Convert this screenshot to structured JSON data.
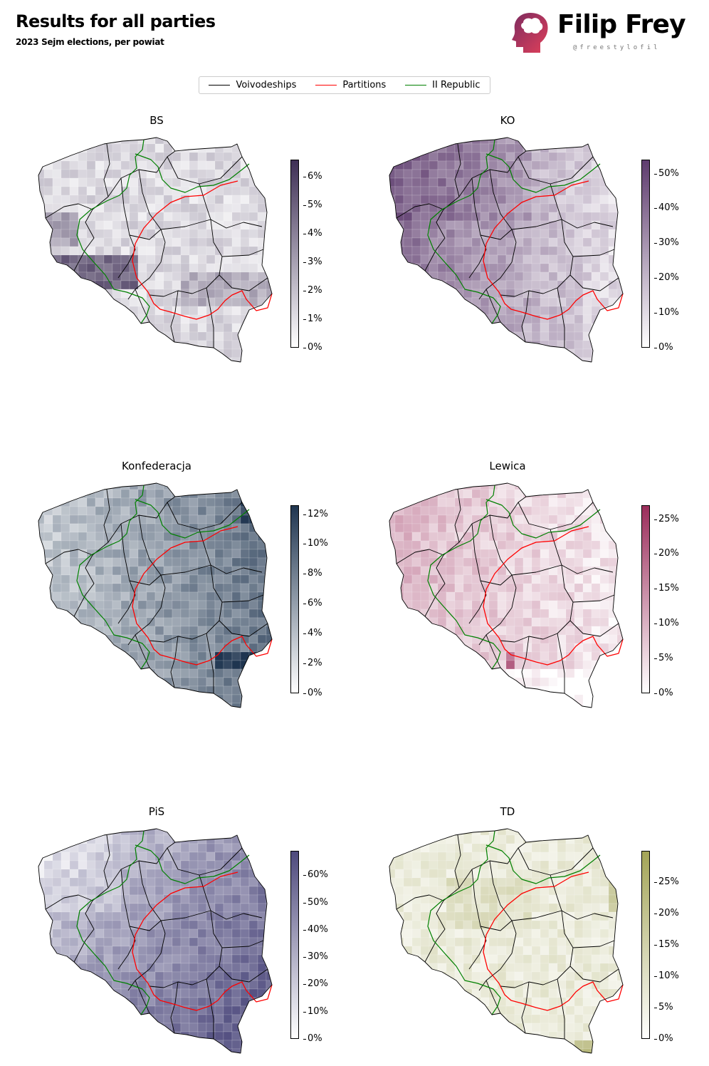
{
  "header": {
    "title": "Results for all parties",
    "subtitle": "2023 Sejm elections, per powiat",
    "brand_name": "Filip Frey",
    "brand_handle": "@freestylofil"
  },
  "legend": [
    {
      "label": "Voivodeships",
      "color": "#000000"
    },
    {
      "label": "Partitions",
      "color": "#ff0000"
    },
    {
      "label": "II Republic",
      "color": "#008000"
    }
  ],
  "panels": [
    {
      "id": "bs",
      "title": "BS",
      "color_low": "#ffffff",
      "color_high": "#3e2f55",
      "cmax": 6.6,
      "ticks": [
        "0%",
        "1%",
        "2%",
        "3%",
        "4%",
        "5%",
        "6%"
      ],
      "tick_values": [
        0,
        1,
        2,
        3,
        4,
        5,
        6
      ]
    },
    {
      "id": "ko",
      "title": "KO",
      "color_low": "#ffffff",
      "color_high": "#5e3c6e",
      "cmax": 54,
      "ticks": [
        "0%",
        "10%",
        "20%",
        "30%",
        "40%",
        "50%"
      ],
      "tick_values": [
        0,
        10,
        20,
        30,
        40,
        50
      ]
    },
    {
      "id": "konf",
      "title": "Konfederacja",
      "color_low": "#ffffff",
      "color_high": "#1f3550",
      "cmax": 12.6,
      "ticks": [
        "0%",
        "2%",
        "4%",
        "6%",
        "8%",
        "10%",
        "12%"
      ],
      "tick_values": [
        0,
        2,
        4,
        6,
        8,
        10,
        12
      ]
    },
    {
      "id": "lewica",
      "title": "Lewica",
      "color_low": "#ffffff",
      "color_high": "#9b2d5b",
      "cmax": 27,
      "ticks": [
        "0%",
        "5%",
        "10%",
        "15%",
        "20%",
        "25%"
      ],
      "tick_values": [
        0,
        5,
        10,
        15,
        20,
        25
      ]
    },
    {
      "id": "pis",
      "title": "PiS",
      "color_low": "#ffffff",
      "color_high": "#4e4a7d",
      "cmax": 69,
      "ticks": [
        "0%",
        "10%",
        "20%",
        "30%",
        "40%",
        "50%",
        "60%"
      ],
      "tick_values": [
        0,
        10,
        20,
        30,
        40,
        50,
        60
      ]
    },
    {
      "id": "td",
      "title": "TD",
      "color_low": "#ffffff",
      "color_high": "#a3a457",
      "cmax": 30,
      "ticks": [
        "0%",
        "5%",
        "10%",
        "15%",
        "20%",
        "25%"
      ],
      "tick_values": [
        0,
        5,
        10,
        15,
        20,
        25
      ]
    }
  ]
}
